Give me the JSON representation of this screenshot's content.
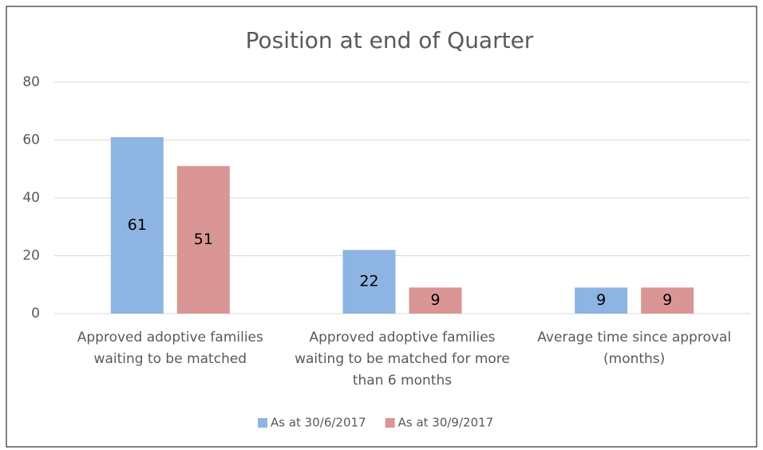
{
  "chart_data": {
    "type": "bar",
    "title": "Position at end of Quarter",
    "categories": [
      "Approved adoptive families waiting to be matched",
      "Approved adoptive families waiting to be matched for more than 6 months",
      "Average time since approval (months)"
    ],
    "series": [
      {
        "name": "As at 30/6/2017",
        "color": "#8eb4e3",
        "values": [
          61,
          22,
          9
        ]
      },
      {
        "name": "As at 30/9/2017",
        "color": "#d99694",
        "values": [
          51,
          9,
          9
        ]
      }
    ],
    "ylim": [
      0,
      80
    ],
    "yticks": [
      0,
      20,
      40,
      60,
      80
    ],
    "grid": true,
    "legend": "bottom"
  }
}
